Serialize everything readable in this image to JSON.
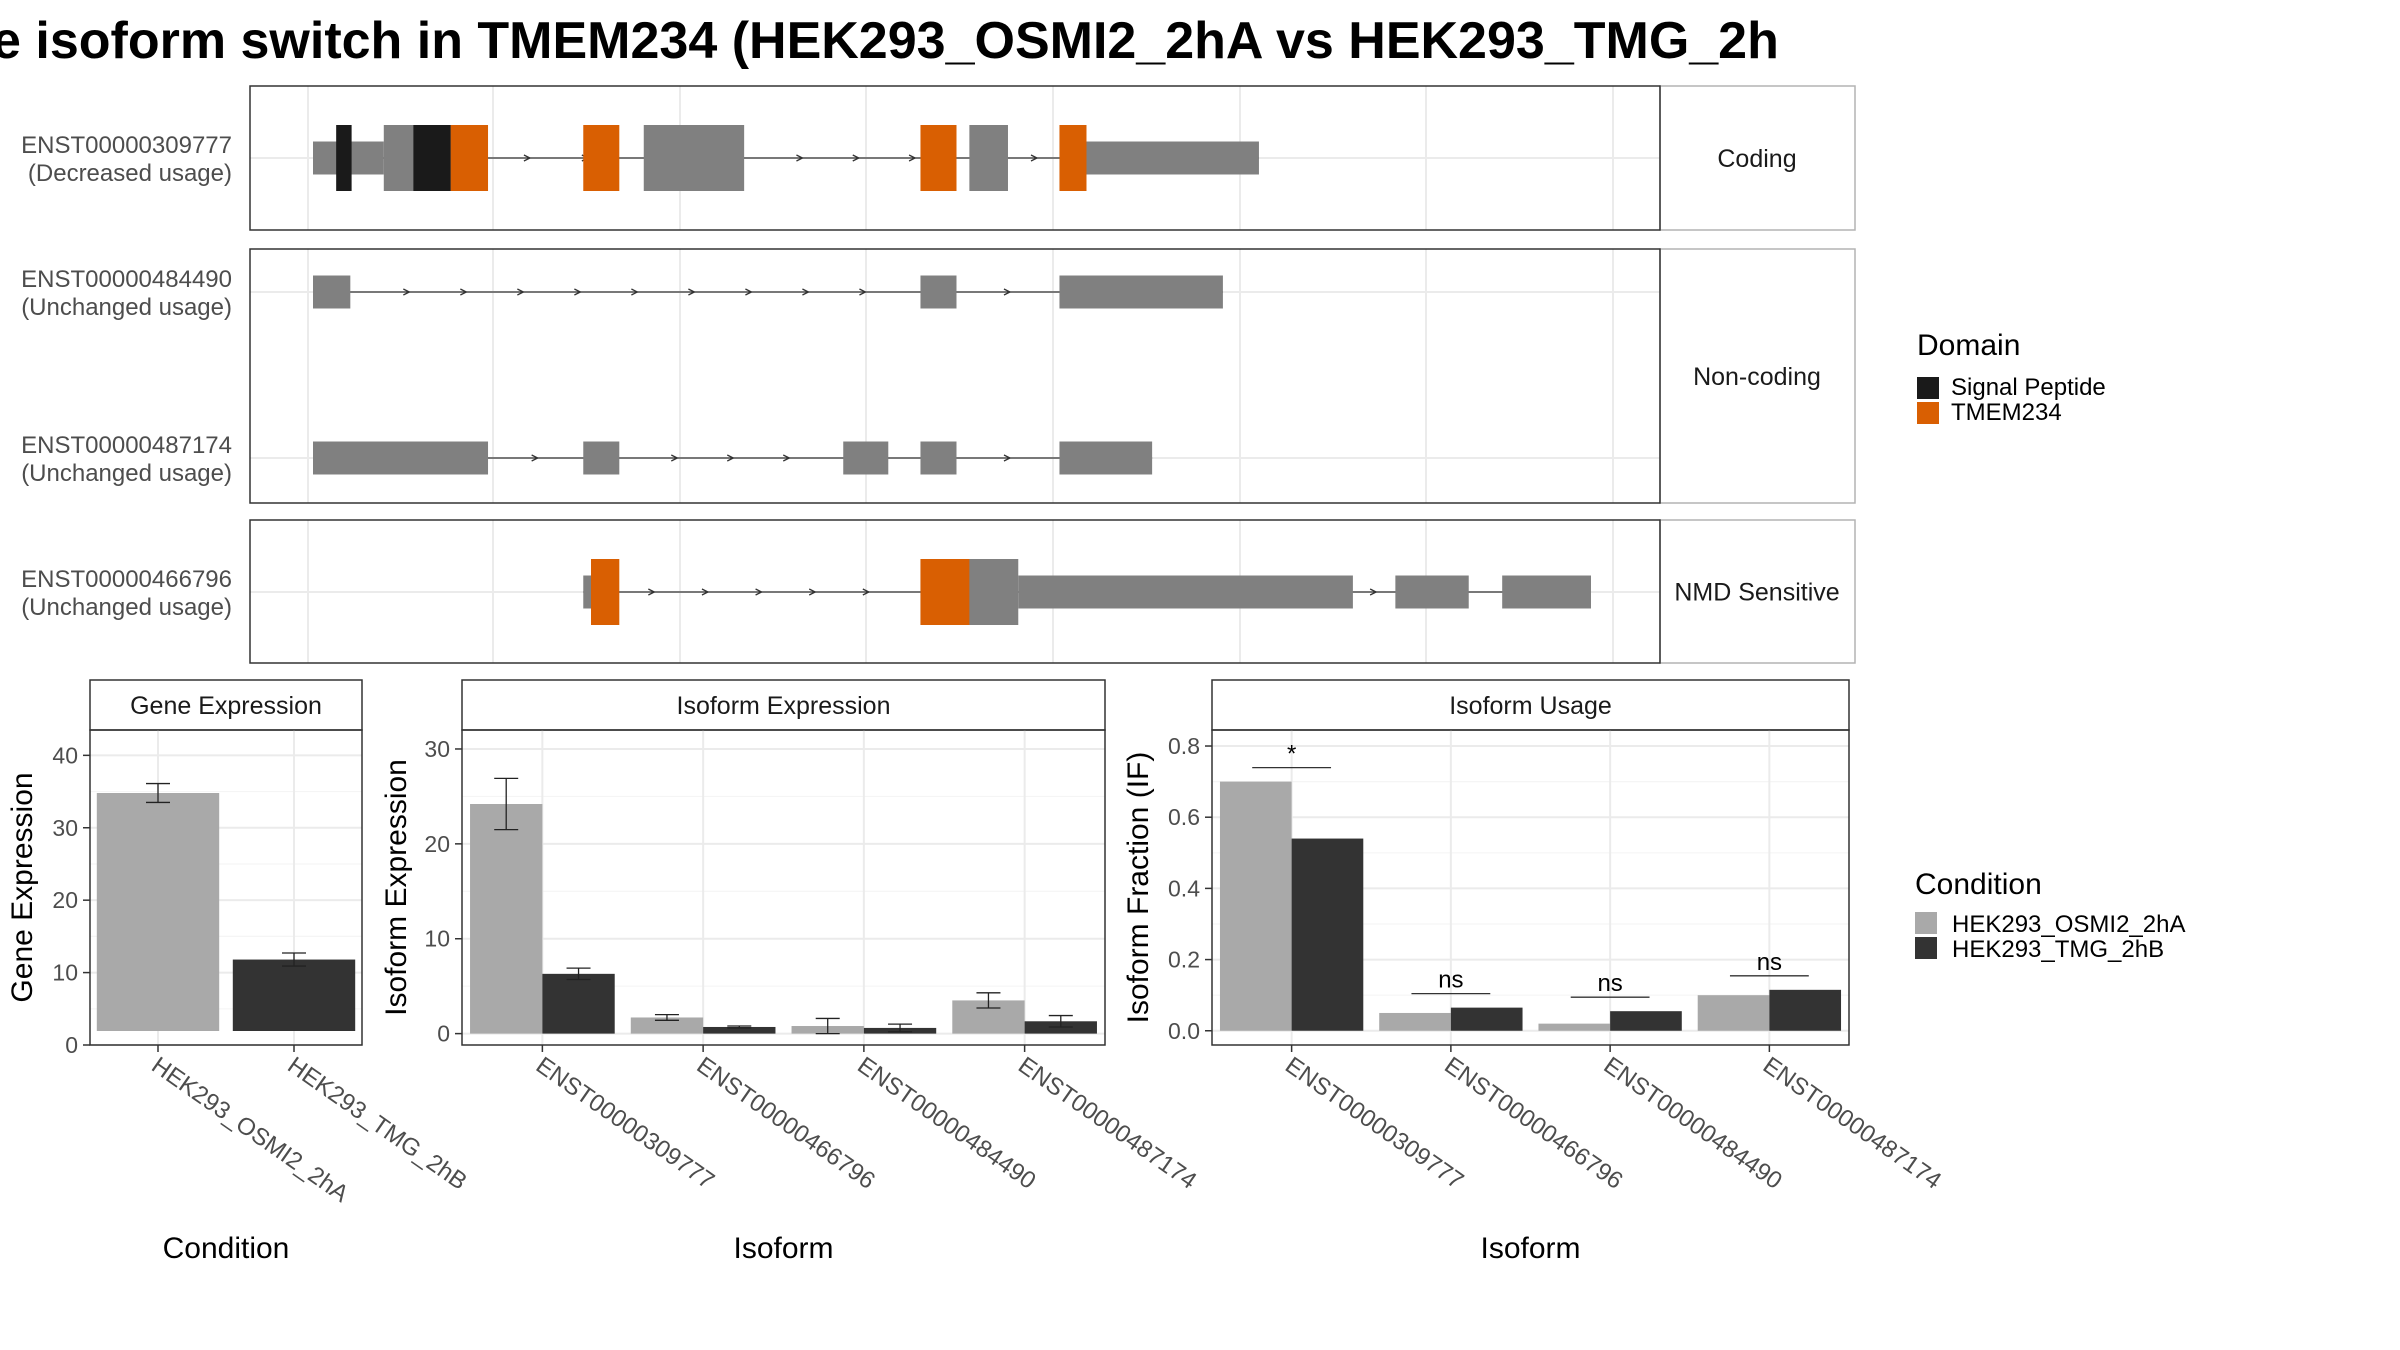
{
  "title": "e isoform switch in TMEM234 (HEK293_OSMI2_2hA vs HEK293_TMG_2h",
  "colors": {
    "signal_peptide": "#1a1a1a",
    "tmem234": "#d95f02",
    "exon": "#808080",
    "cond_a": "#a9a9a9",
    "cond_b": "#333333"
  },
  "structure": {
    "panels": [
      {
        "label": "Coding",
        "tracks": [
          "ENST00000309777"
        ]
      },
      {
        "label": "Non-coding",
        "tracks": [
          "ENST00000484490",
          "ENST00000487174"
        ]
      },
      {
        "label": "NMD Sensitive",
        "tracks": [
          "ENST00000466796"
        ]
      }
    ],
    "transcripts": [
      {
        "id": "ENST00000309777",
        "usage": "(Decreased usage)",
        "exons": [
          [
            0.0,
            0.055,
            "utr"
          ],
          [
            0.055,
            0.122,
            "cds"
          ],
          [
            0.257,
            0.335,
            "cds"
          ],
          [
            0.51,
            0.54,
            "cds"
          ],
          [
            0.582,
            0.589,
            "cds"
          ],
          [
            0.589,
            0.735,
            "utr"
          ]
        ],
        "domains": [
          [
            0.018,
            0.03,
            "signal_peptide"
          ],
          [
            0.078,
            0.107,
            "signal_peptide"
          ],
          [
            0.107,
            0.136,
            "tmem234"
          ],
          [
            0.21,
            0.238,
            "tmem234"
          ],
          [
            0.472,
            0.5,
            "tmem234"
          ],
          [
            0.58,
            0.601,
            "tmem234"
          ]
        ]
      },
      {
        "id": "ENST00000484490",
        "usage": "(Unchanged usage)",
        "exons": [
          [
            0.0,
            0.029,
            "utr"
          ],
          [
            0.472,
            0.5,
            "utr"
          ],
          [
            0.58,
            0.707,
            "utr"
          ]
        ],
        "domains": []
      },
      {
        "id": "ENST00000487174",
        "usage": "(Unchanged usage)",
        "exons": [
          [
            0.0,
            0.136,
            "utr"
          ],
          [
            0.21,
            0.238,
            "utr"
          ],
          [
            0.412,
            0.447,
            "utr"
          ],
          [
            0.472,
            0.5,
            "utr"
          ],
          [
            0.58,
            0.652,
            "utr"
          ]
        ],
        "domains": []
      },
      {
        "id": "ENST00000466796",
        "usage": "(Unchanged usage)",
        "exons": [
          [
            0.21,
            0.222,
            "utr"
          ],
          [
            0.472,
            0.548,
            "cds"
          ],
          [
            0.548,
            0.808,
            "utr"
          ],
          [
            0.841,
            0.898,
            "utr"
          ],
          [
            0.924,
            0.993,
            "utr"
          ]
        ],
        "domains": [
          [
            0.216,
            0.238,
            "tmem234"
          ],
          [
            0.472,
            0.51,
            "tmem234"
          ]
        ]
      }
    ]
  },
  "legend_domain": {
    "title": "Domain",
    "items": [
      "Signal Peptide",
      "TMEM234"
    ]
  },
  "legend_condition": {
    "title": "Condition",
    "items": [
      "HEK293_OSMI2_2hA",
      "HEK293_TMG_2hB"
    ]
  },
  "chart_data": [
    {
      "type": "bar",
      "title": "Gene Expression",
      "xlabel": "Condition",
      "ylabel": "Gene Expression",
      "categories": [
        "HEK293_OSMI2_2hA",
        "HEK293_TMG_2hB"
      ],
      "values": [
        34.8,
        11.8
      ],
      "errors": [
        1.3,
        0.9
      ],
      "ylim": [
        0,
        43.5
      ],
      "yticks": [
        0,
        10,
        20,
        30,
        40
      ],
      "grid": true
    },
    {
      "type": "bar",
      "title": "Isoform Expression",
      "xlabel": "Isoform",
      "ylabel": "Isoform Expression",
      "categories": [
        "ENST00000309777",
        "ENST00000466796",
        "ENST00000484490",
        "ENST00000487174"
      ],
      "series": [
        {
          "name": "HEK293_OSMI2_2hA",
          "values": [
            24.2,
            1.7,
            0.8,
            3.5
          ],
          "errors": [
            2.7,
            0.3,
            0.8,
            0.8
          ]
        },
        {
          "name": "HEK293_TMG_2hB",
          "values": [
            6.3,
            0.7,
            0.6,
            1.3
          ],
          "errors": [
            0.6,
            0.1,
            0.4,
            0.6
          ]
        }
      ],
      "ylim": [
        -1.2,
        32
      ],
      "yticks": [
        0,
        10,
        20,
        30
      ],
      "grid": true
    },
    {
      "type": "bar",
      "title": "Isoform Usage",
      "xlabel": "Isoform",
      "ylabel": "Isoform Fraction (IF)",
      "categories": [
        "ENST00000309777",
        "ENST00000466796",
        "ENST00000484490",
        "ENST00000487174"
      ],
      "series": [
        {
          "name": "HEK293_OSMI2_2hA",
          "values": [
            0.7,
            0.05,
            0.02,
            0.1
          ]
        },
        {
          "name": "HEK293_TMG_2hB",
          "values": [
            0.54,
            0.065,
            0.055,
            0.115
          ]
        }
      ],
      "significance": [
        "*",
        "ns",
        "ns",
        "ns"
      ],
      "ylim": [
        -0.04,
        0.845
      ],
      "yticks": [
        0.0,
        0.2,
        0.4,
        0.6,
        0.8
      ],
      "ytick_labels": [
        "0.0",
        "0.2",
        "0.4",
        "0.6",
        "0.8"
      ],
      "grid": true
    }
  ]
}
